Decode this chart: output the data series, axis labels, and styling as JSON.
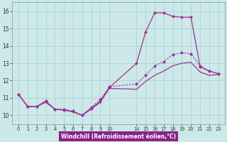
{
  "xlabel": "Windchill (Refroidissement éolien,°C)",
  "background_color": "#cce8e8",
  "grid_color": "#aacece",
  "line_color": "#993399",
  "ylim": [
    9.5,
    16.5
  ],
  "yticks": [
    10,
    11,
    12,
    13,
    14,
    15,
    16
  ],
  "xlabel_bg": "#882288",
  "x_labels": [
    "0",
    "1",
    "2",
    "3",
    "4",
    "5",
    "6",
    "7",
    "8",
    "9",
    "10",
    "",
    "",
    "",
    "14",
    "15",
    "16",
    "17",
    "18",
    "19",
    "20",
    "21",
    "22",
    "23"
  ],
  "x_tick_positions": [
    0,
    1,
    2,
    3,
    4,
    5,
    6,
    7,
    8,
    9,
    10,
    14,
    15,
    16,
    17,
    18,
    19,
    20,
    21,
    22,
    23
  ],
  "x_display_labels": [
    "0",
    "1",
    "2",
    "3",
    "4",
    "5",
    "6",
    "7",
    "8",
    "9",
    "10",
    "14",
    "15",
    "16",
    "17",
    "18",
    "19",
    "20",
    "21",
    "22",
    "23"
  ],
  "series1_x": [
    0,
    1,
    2,
    3,
    4,
    5,
    6,
    7,
    8,
    9,
    10,
    14,
    15,
    16,
    17,
    18,
    19,
    20,
    21,
    22,
    23
  ],
  "series1_y": [
    11.2,
    10.5,
    10.5,
    10.8,
    10.35,
    10.3,
    10.2,
    10.0,
    10.4,
    10.8,
    11.6,
    13.0,
    14.8,
    15.9,
    15.9,
    15.7,
    15.65,
    15.65,
    12.8,
    12.55,
    12.4
  ],
  "series2_x": [
    0,
    1,
    2,
    3,
    4,
    5,
    6,
    7,
    8,
    9,
    10,
    14,
    15,
    16,
    17,
    18,
    19,
    20,
    21,
    22,
    23
  ],
  "series2_y": [
    11.2,
    10.5,
    10.5,
    10.85,
    10.35,
    10.35,
    10.25,
    10.0,
    10.45,
    10.9,
    11.65,
    11.8,
    12.3,
    12.85,
    13.1,
    13.5,
    13.6,
    13.55,
    12.85,
    12.55,
    12.4
  ],
  "series3_x": [
    0,
    1,
    2,
    3,
    4,
    5,
    6,
    7,
    8,
    9,
    10,
    14,
    15,
    16,
    17,
    18,
    19,
    20,
    21,
    22,
    23
  ],
  "series3_y": [
    11.2,
    10.5,
    10.5,
    10.75,
    10.35,
    10.3,
    10.2,
    10.0,
    10.35,
    10.75,
    11.55,
    11.5,
    11.95,
    12.3,
    12.55,
    12.85,
    13.0,
    13.05,
    12.5,
    12.3,
    12.35
  ]
}
